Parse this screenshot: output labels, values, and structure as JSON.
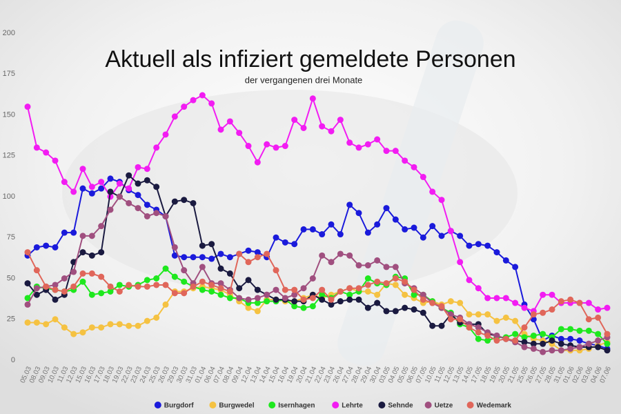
{
  "chart_data": {
    "type": "line",
    "title": "Aktuell als infiziert gemeldete Personen",
    "subtitle": "der vergangenen drei Monate",
    "categories": [
      "05.03",
      "08.03",
      "09.03",
      "10.03",
      "11.03",
      "12.03",
      "15.03",
      "16.03",
      "17.03",
      "18.03",
      "19.03",
      "22.03",
      "23.03",
      "24.03",
      "25.03",
      "26.03",
      "29.03",
      "30.03",
      "31.03",
      "01.04",
      "06.04",
      "07.04",
      "08.04",
      "09.04",
      "12.04",
      "13.04",
      "14.04",
      "15.04",
      "16.04",
      "19.04",
      "20.04",
      "21.04",
      "22.04",
      "23.04",
      "26.04",
      "27.04",
      "28.04",
      "29.04",
      "30.04",
      "03.05",
      "04.05",
      "05.05",
      "06.05",
      "07.05",
      "10.05",
      "11.05",
      "12.05",
      "13.05",
      "14.05",
      "17.05",
      "18.05",
      "19.05",
      "20.05",
      "21.05",
      "25.05",
      "26.05",
      "27.05",
      "28.05",
      "31.05",
      "01.06",
      "02.06",
      "03.06",
      "04.06",
      "07.06"
    ],
    "series": [
      {
        "name": "Burgdorf",
        "color": "#1a1adb",
        "values": [
          64,
          69,
          70,
          69,
          78,
          78,
          105,
          102,
          105,
          111,
          109,
          104,
          101,
          95,
          92,
          88,
          64,
          63,
          63,
          63,
          62,
          65,
          63,
          65,
          67,
          66,
          63,
          75,
          72,
          71,
          80,
          80,
          77,
          83,
          77,
          95,
          90,
          78,
          83,
          93,
          86,
          80,
          81,
          75,
          82,
          76,
          79,
          76,
          70,
          71,
          70,
          66,
          61,
          57,
          34,
          25,
          12,
          15,
          13,
          13,
          12,
          10,
          9,
          7
        ]
      },
      {
        "name": "Burgwedel",
        "color": "#f5c242",
        "values": [
          23,
          23,
          22,
          25,
          20,
          16,
          17,
          20,
          20,
          22,
          22,
          21,
          21,
          24,
          26,
          34,
          42,
          42,
          44,
          45,
          44,
          43,
          40,
          36,
          32,
          30,
          37,
          37,
          36,
          36,
          38,
          40,
          38,
          40,
          42,
          44,
          42,
          42,
          40,
          47,
          46,
          40,
          38,
          35,
          36,
          34,
          36,
          35,
          28,
          28,
          28,
          24,
          26,
          24,
          16,
          13,
          12,
          10,
          6,
          6,
          6,
          7,
          9,
          11
        ]
      },
      {
        "name": "Isernhagen",
        "color": "#1ee81e",
        "values": [
          38,
          45,
          44,
          43,
          42,
          43,
          48,
          40,
          41,
          42,
          46,
          45,
          46,
          49,
          50,
          56,
          51,
          48,
          45,
          43,
          42,
          40,
          38,
          38,
          35,
          35,
          36,
          36,
          37,
          33,
          32,
          33,
          40,
          38,
          42,
          40,
          42,
          50,
          47,
          46,
          51,
          50,
          40,
          40,
          36,
          32,
          29,
          22,
          20,
          13,
          12,
          14,
          14,
          16,
          14,
          15,
          16,
          14,
          19,
          19,
          18,
          18,
          16,
          10
        ]
      },
      {
        "name": "Lehrte",
        "color": "#f21cf2",
        "values": [
          155,
          130,
          127,
          122,
          109,
          103,
          117,
          106,
          109,
          100,
          108,
          105,
          118,
          117,
          130,
          138,
          149,
          155,
          159,
          162,
          157,
          141,
          146,
          139,
          131,
          121,
          132,
          130,
          131,
          147,
          142,
          160,
          143,
          140,
          147,
          133,
          130,
          132,
          135,
          128,
          128,
          122,
          118,
          112,
          103,
          98,
          79,
          60,
          49,
          44,
          38,
          38,
          38,
          35,
          32,
          30,
          40,
          40,
          35,
          35,
          35,
          35,
          31,
          32
        ]
      },
      {
        "name": "Sehnde",
        "color": "#1a1a40",
        "values": [
          47,
          40,
          43,
          37,
          40,
          60,
          66,
          64,
          66,
          103,
          100,
          113,
          108,
          110,
          106,
          88,
          97,
          98,
          96,
          70,
          71,
          56,
          53,
          44,
          49,
          43,
          40,
          37,
          37,
          36,
          36,
          40,
          37,
          34,
          36,
          37,
          37,
          32,
          35,
          30,
          30,
          32,
          31,
          29,
          21,
          21,
          28,
          23,
          22,
          22,
          16,
          15,
          13,
          12,
          11,
          10,
          10,
          12,
          10,
          9,
          8,
          8,
          8,
          6
        ]
      },
      {
        "name": "Uetze",
        "color": "#a04f7f",
        "values": [
          34,
          44,
          45,
          46,
          50,
          54,
          76,
          76,
          82,
          92,
          100,
          96,
          93,
          88,
          90,
          88,
          69,
          55,
          47,
          57,
          47,
          47,
          43,
          38,
          37,
          38,
          40,
          43,
          38,
          40,
          44,
          50,
          64,
          60,
          65,
          64,
          58,
          58,
          61,
          57,
          57,
          47,
          44,
          40,
          35,
          32,
          28,
          26,
          22,
          20,
          17,
          15,
          13,
          11,
          8,
          7,
          5,
          6,
          6,
          7,
          8,
          10,
          12,
          14
        ]
      },
      {
        "name": "Wedemark",
        "color": "#e0665a",
        "values": [
          66,
          55,
          45,
          43,
          42,
          45,
          53,
          53,
          51,
          45,
          42,
          46,
          45,
          45,
          46,
          46,
          41,
          41,
          45,
          48,
          46,
          44,
          42,
          65,
          60,
          63,
          65,
          55,
          43,
          43,
          37,
          38,
          43,
          37,
          42,
          44,
          44,
          46,
          48,
          47,
          50,
          48,
          43,
          37,
          35,
          33,
          25,
          25,
          20,
          17,
          15,
          12,
          13,
          12,
          20,
          28,
          29,
          31,
          36,
          37,
          35,
          25,
          26,
          16
        ]
      }
    ],
    "ylim": [
      0,
      200
    ],
    "yticks": [
      0,
      25,
      50,
      75,
      100,
      125,
      150,
      175,
      200
    ],
    "grid": false,
    "legend": "bottom"
  }
}
